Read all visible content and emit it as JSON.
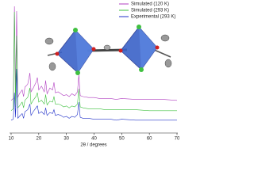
{
  "chart_data": {
    "type": "line",
    "x": [
      10,
      10.8,
      11.2,
      11.6,
      12,
      12.4,
      13,
      14,
      14.5,
      15,
      16,
      16.8,
      17.2,
      18,
      19,
      19.5,
      20,
      21,
      22,
      22.5,
      23,
      24,
      25,
      25.5,
      26,
      27,
      28,
      29,
      30,
      31,
      32,
      33,
      34,
      34.5,
      35,
      36,
      38,
      40,
      42,
      44,
      46,
      48,
      50,
      55,
      60,
      65,
      70
    ],
    "series": [
      {
        "name": "Simulated (120 K)",
        "color": "#b03cc0",
        "values": [
          1,
          3,
          100,
          6,
          95,
          4,
          8,
          12,
          5,
          15,
          18,
          30,
          10,
          14,
          20,
          25,
          12,
          16,
          10,
          22,
          8,
          14,
          12,
          20,
          9,
          10,
          8,
          6,
          7,
          5,
          8,
          6,
          10,
          28,
          6,
          5,
          4,
          4,
          3,
          3,
          3,
          2,
          3,
          2,
          2,
          2,
          1
        ]
      },
      {
        "name": "Simulated (293 K)",
        "color": "#3cc03c",
        "values": [
          1,
          3,
          105,
          5,
          80,
          4,
          6,
          10,
          4,
          12,
          15,
          25,
          8,
          12,
          16,
          20,
          10,
          12,
          8,
          18,
          7,
          11,
          10,
          16,
          8,
          8,
          7,
          5,
          6,
          4,
          6,
          5,
          8,
          24,
          5,
          4,
          3,
          3,
          3,
          2,
          2,
          2,
          2,
          2,
          1,
          1,
          1
        ]
      },
      {
        "name": "Experimental (293 K)",
        "color": "#2030c8",
        "values": [
          1,
          2,
          30,
          4,
          55,
          3,
          5,
          8,
          3,
          10,
          12,
          18,
          6,
          10,
          14,
          16,
          8,
          10,
          7,
          14,
          6,
          9,
          8,
          12,
          6,
          7,
          6,
          4,
          5,
          3,
          5,
          4,
          7,
          20,
          4,
          3,
          3,
          2,
          2,
          2,
          2,
          1,
          2,
          1,
          1,
          1,
          1
        ]
      }
    ],
    "xlim": [
      10,
      70
    ],
    "xticks": [
      10,
      20,
      30,
      40,
      50,
      60,
      70
    ],
    "xlabel": "2θ / degrees",
    "legend": "upper right"
  }
}
